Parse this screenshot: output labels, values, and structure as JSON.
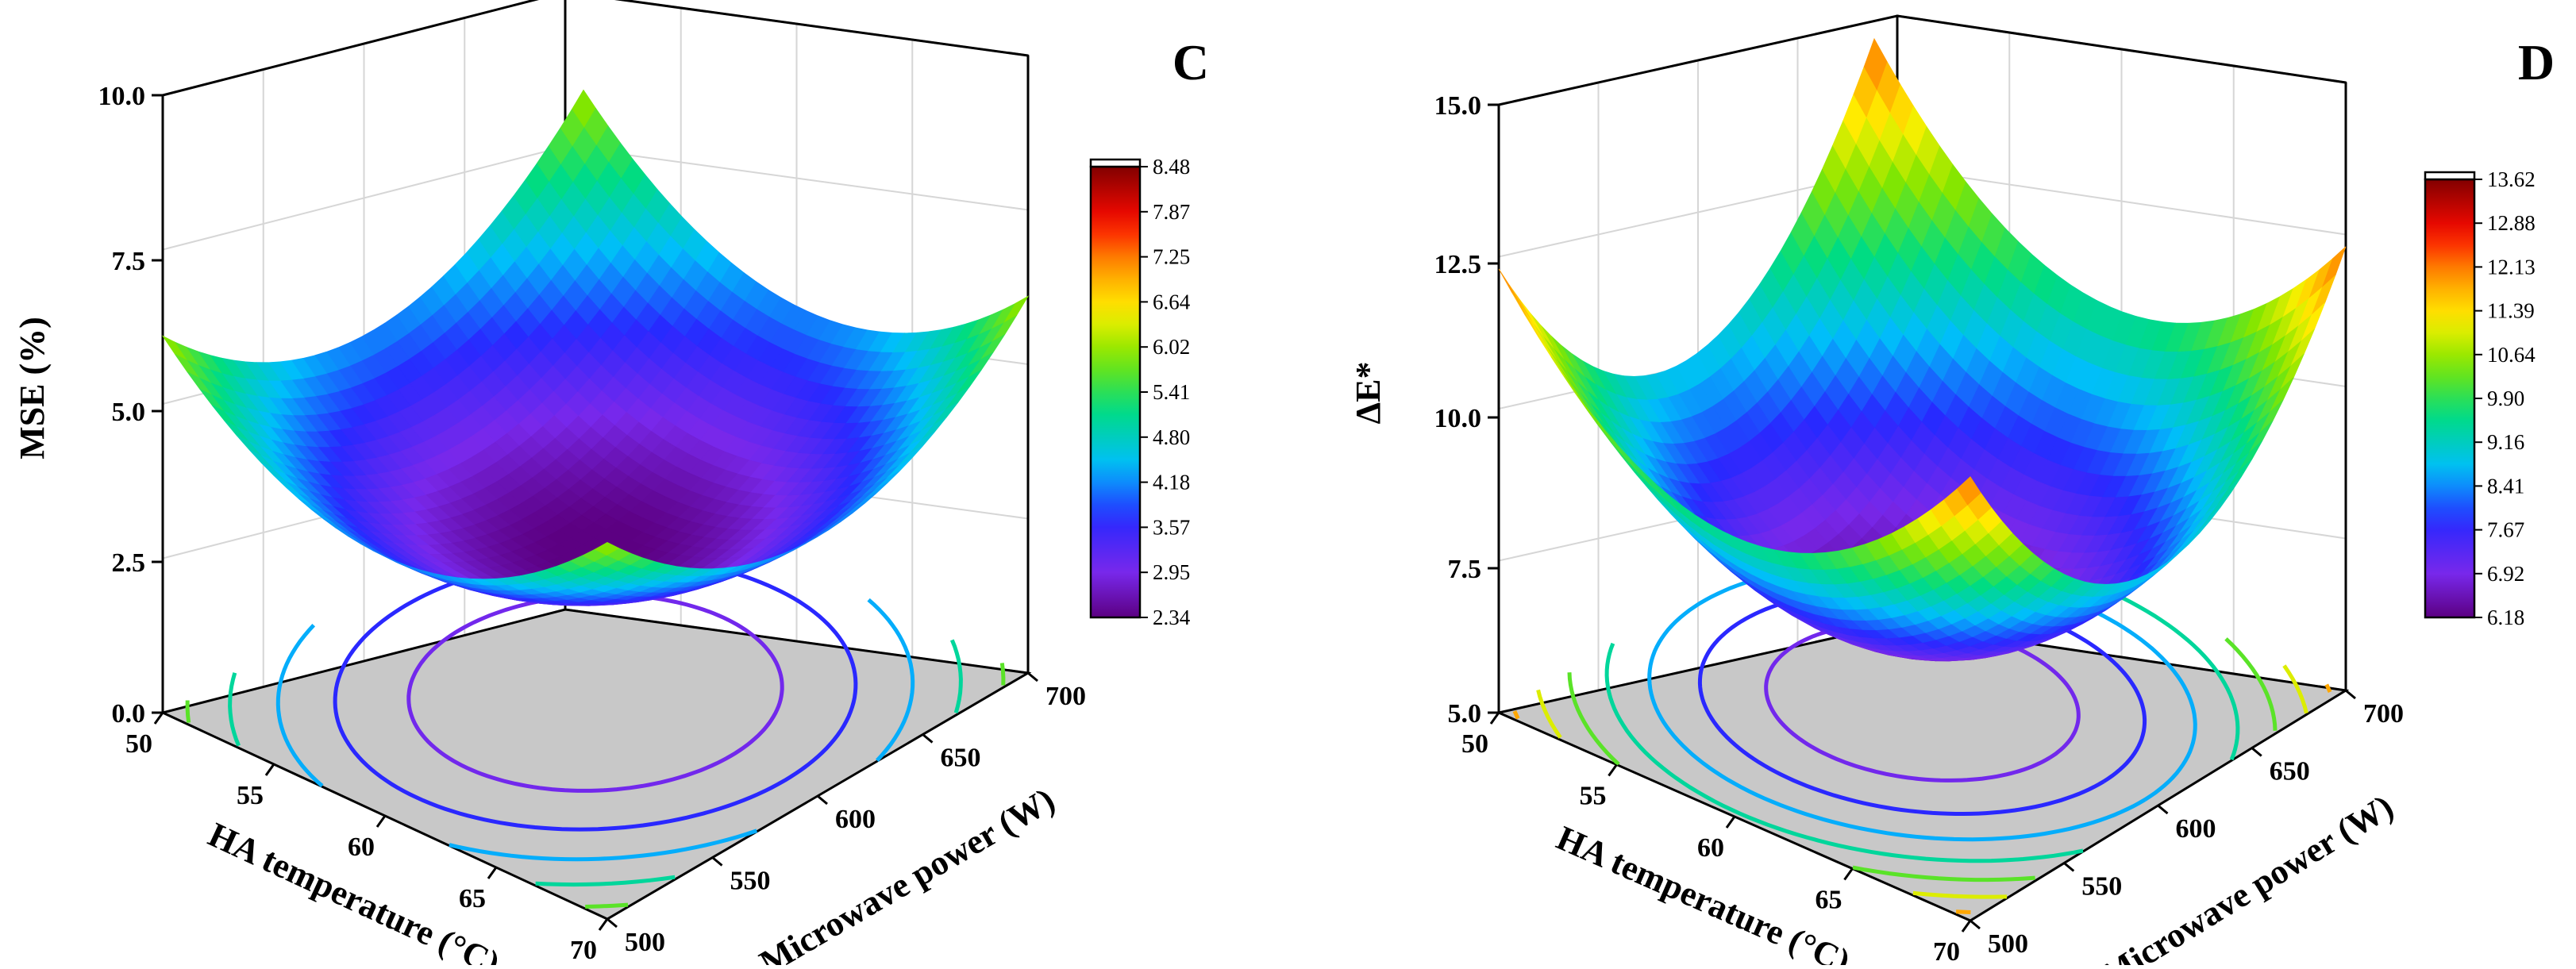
{
  "chart_data": [
    {
      "type": "surface3d",
      "panel_label": "C",
      "xlabel": "HA temperature (°C)",
      "ylabel": "Microwave power (W)",
      "zlabel": "MSE (%)",
      "x_ticks": [
        50,
        55,
        60,
        65,
        70
      ],
      "y_ticks": [
        500,
        550,
        600,
        650,
        700
      ],
      "z_ticks": [
        "0.0",
        "2.5",
        "5.0",
        "7.5",
        "10.0"
      ],
      "xlim": [
        50,
        70
      ],
      "ylim": [
        500,
        700
      ],
      "zlim": [
        0,
        10
      ],
      "model": {
        "z0": 2.3,
        "kx": 1.9,
        "ky": 1.9
      },
      "colorbar": {
        "min": 2.34,
        "max": 8.48,
        "labels": [
          "8.48",
          "7.87",
          "7.25",
          "6.64",
          "6.02",
          "5.41",
          "4.80",
          "4.18",
          "3.57",
          "2.95",
          "2.34"
        ]
      }
    },
    {
      "type": "surface3d",
      "panel_label": "D",
      "xlabel": "HA temperature (°C)",
      "ylabel": "Microwave power (W)",
      "zlabel": "ΔE*",
      "x_ticks": [
        50,
        55,
        60,
        65,
        70
      ],
      "y_ticks": [
        500,
        550,
        600,
        650,
        700
      ],
      "z_ticks": [
        "5.0",
        "7.5",
        "10.0",
        "12.5",
        "15.0"
      ],
      "xlim": [
        50,
        70
      ],
      "ylim": [
        500,
        700
      ],
      "zlim": [
        5,
        15
      ],
      "model": {
        "z0": 6.2,
        "kx": 2.7,
        "ky": 3.4
      },
      "colorbar": {
        "min": 6.18,
        "max": 13.62,
        "labels": [
          "13.62",
          "12.88",
          "12.13",
          "11.39",
          "10.64",
          "9.90",
          "9.16",
          "8.41",
          "7.67",
          "6.92",
          "6.18"
        ]
      }
    }
  ]
}
